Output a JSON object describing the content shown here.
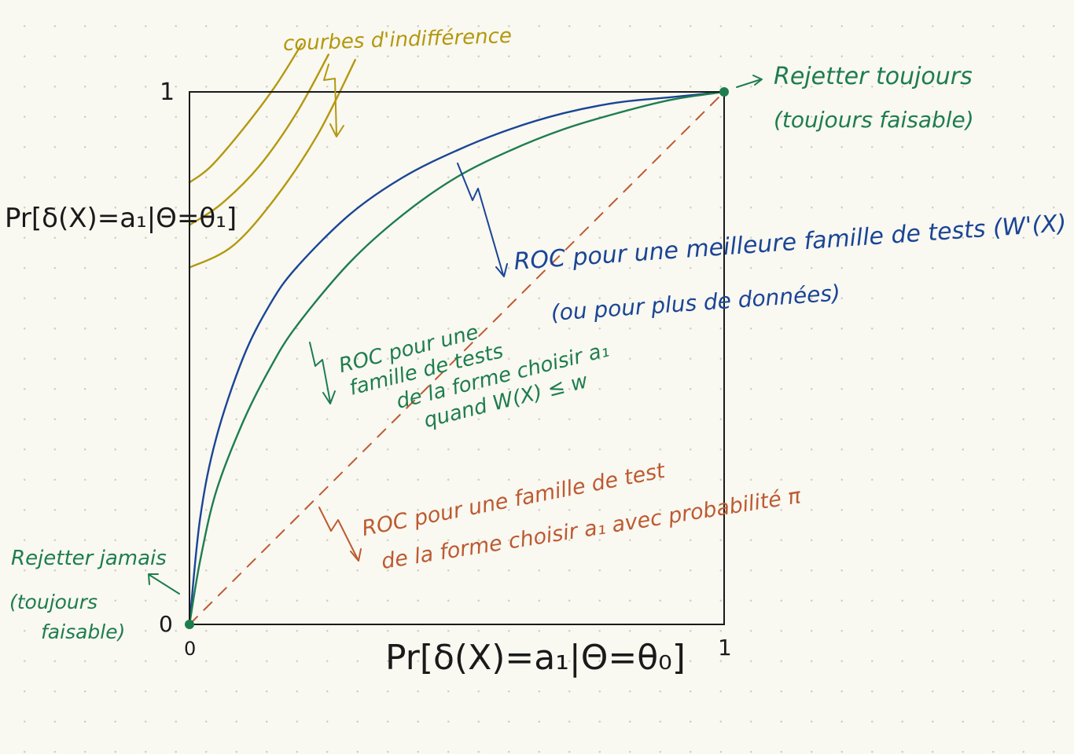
{
  "colors": {
    "green": "#1e7d4e",
    "blue": "#1a4595",
    "orange": "#bd5a31",
    "olive": "#b3980f",
    "ink": "#1a1a1a",
    "paper": "#f9f8f1"
  },
  "axes": {
    "x_label": "Pr[δ(X)=a₁|Θ=θ₀]",
    "y_label": "Pr[δ(X)=a₁|Θ=θ₁]",
    "x_min_tick": "0",
    "x_max_tick": "1",
    "y_min_tick": "0",
    "y_max_tick": "1"
  },
  "annotations": {
    "indifference": "courbes d'indifférence",
    "always_reject": [
      "Rejetter toujours",
      "(toujours faisable)"
    ],
    "never_reject": [
      "Rejetter jamais",
      "(toujours",
      "faisable)"
    ],
    "better_family": [
      "ROC pour une meilleure famille de tests (W'(X) ≤ w)",
      "(ou pour plus de données)"
    ],
    "test_family": [
      "ROC pour une",
      "famille de tests",
      "de la forme choisir a₁",
      "quand W(X) ≤ w"
    ],
    "random_family": [
      "ROC pour une famille de test",
      "de la forme choisir a₁ avec probabilité π"
    ]
  },
  "chart_data": {
    "type": "line",
    "xlim": [
      0,
      1
    ],
    "ylim": [
      0,
      1
    ],
    "series": [
      {
        "key": "better",
        "color": "#1a4595",
        "style": "solid",
        "x": [
          0,
          0.02,
          0.05,
          0.1,
          0.15,
          0.2,
          0.3,
          0.4,
          0.5,
          0.6,
          0.7,
          0.8,
          0.9,
          1
        ],
        "y": [
          0,
          0.2,
          0.35,
          0.5,
          0.6,
          0.67,
          0.77,
          0.84,
          0.89,
          0.93,
          0.96,
          0.98,
          0.99,
          1
        ]
      },
      {
        "key": "family",
        "color": "#1e7d4e",
        "style": "solid",
        "x": [
          0,
          0.02,
          0.05,
          0.1,
          0.15,
          0.2,
          0.3,
          0.4,
          0.5,
          0.6,
          0.7,
          0.8,
          0.9,
          1
        ],
        "y": [
          0,
          0.12,
          0.25,
          0.38,
          0.48,
          0.56,
          0.68,
          0.77,
          0.84,
          0.89,
          0.93,
          0.96,
          0.985,
          1
        ]
      },
      {
        "key": "random",
        "color": "#bd5a31",
        "style": "dashed",
        "x": [
          0,
          1
        ],
        "y": [
          0,
          1
        ]
      }
    ],
    "indifference_curves": [
      {
        "x": [
          0,
          0.04,
          0.1,
          0.16,
          0.21
        ],
        "y": [
          0.83,
          0.86,
          0.93,
          1.01,
          1.09
        ]
      },
      {
        "x": [
          0,
          0.06,
          0.13,
          0.2,
          0.26
        ],
        "y": [
          0.75,
          0.79,
          0.86,
          0.96,
          1.07
        ]
      },
      {
        "x": [
          0,
          0.08,
          0.16,
          0.24,
          0.31
        ],
        "y": [
          0.67,
          0.71,
          0.8,
          0.92,
          1.06
        ]
      }
    ],
    "points": [
      {
        "x": 0,
        "y": 0
      },
      {
        "x": 1,
        "y": 1
      }
    ]
  }
}
